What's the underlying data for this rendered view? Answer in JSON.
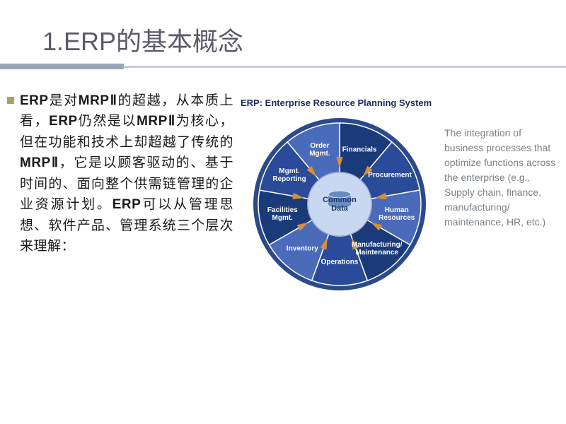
{
  "title": "1.ERP的基本概念",
  "title_style": {
    "font_size": 36,
    "color": "#5a5a6a",
    "underline_thick_color": "#9aa5b5",
    "underline_thick_width": 175,
    "underline_thin_color": "#c8cdd6"
  },
  "bullet_color": "#a8a060",
  "body_html": "<b>ERP</b>是对<b>MRPⅡ</b>的超越，从本质上看，<b>ERP</b>仍然是以<b>MRPⅡ</b>为核心，但在功能和技术上却超越了传统的<b>MRPⅡ</b>，它是以顾客驱动的、基于时间的、面向整个供需链管理的企业资源计划。<b>ERP</b>可以从管理思想、软件产品、管理系统三个层次来理解：",
  "body_style": {
    "font_size": 19,
    "color": "#1a1a1a",
    "line_height": 1.55
  },
  "diagram": {
    "title": "ERP: Enterprise Resource Planning System",
    "title_color": "#1a2a5a",
    "background_color": "#ffffff",
    "outer_ring_color": "#2a4a8a",
    "segment_colors": {
      "dark": "#1a3a7a",
      "mid": "#2a4a9a",
      "light": "#4a6aba"
    },
    "divider_color": "#ffffff",
    "arrow_color": "#d89030",
    "center_fill": "#c8d8f0",
    "center_db_color": "#6a8ac0",
    "center_label": "Common\nData",
    "center_label_color": "#1a3a6a",
    "segments": [
      {
        "label": "Financials",
        "angle": 20
      },
      {
        "label": "Procurement",
        "angle": 60
      },
      {
        "label": "Human\nResources",
        "angle": 100
      },
      {
        "label": "Manufacturing/\nMaintenance",
        "angle": 140
      },
      {
        "label": "Operations",
        "angle": 180
      },
      {
        "label": "Inventory",
        "angle": 220
      },
      {
        "label": "Facilities\nMgmt.",
        "angle": 260
      },
      {
        "label": "Mgmt.\nReporting",
        "angle": 300
      },
      {
        "label": "Order\nMgmt.",
        "angle": 340
      }
    ]
  },
  "caption": "The integration of business processes that optimize functions across the enterprise (e.g., Supply chain, finance, manufacturing/ maintenance, HR, etc.)",
  "caption_style": {
    "color": "#7a7f88",
    "font_size": 14
  }
}
